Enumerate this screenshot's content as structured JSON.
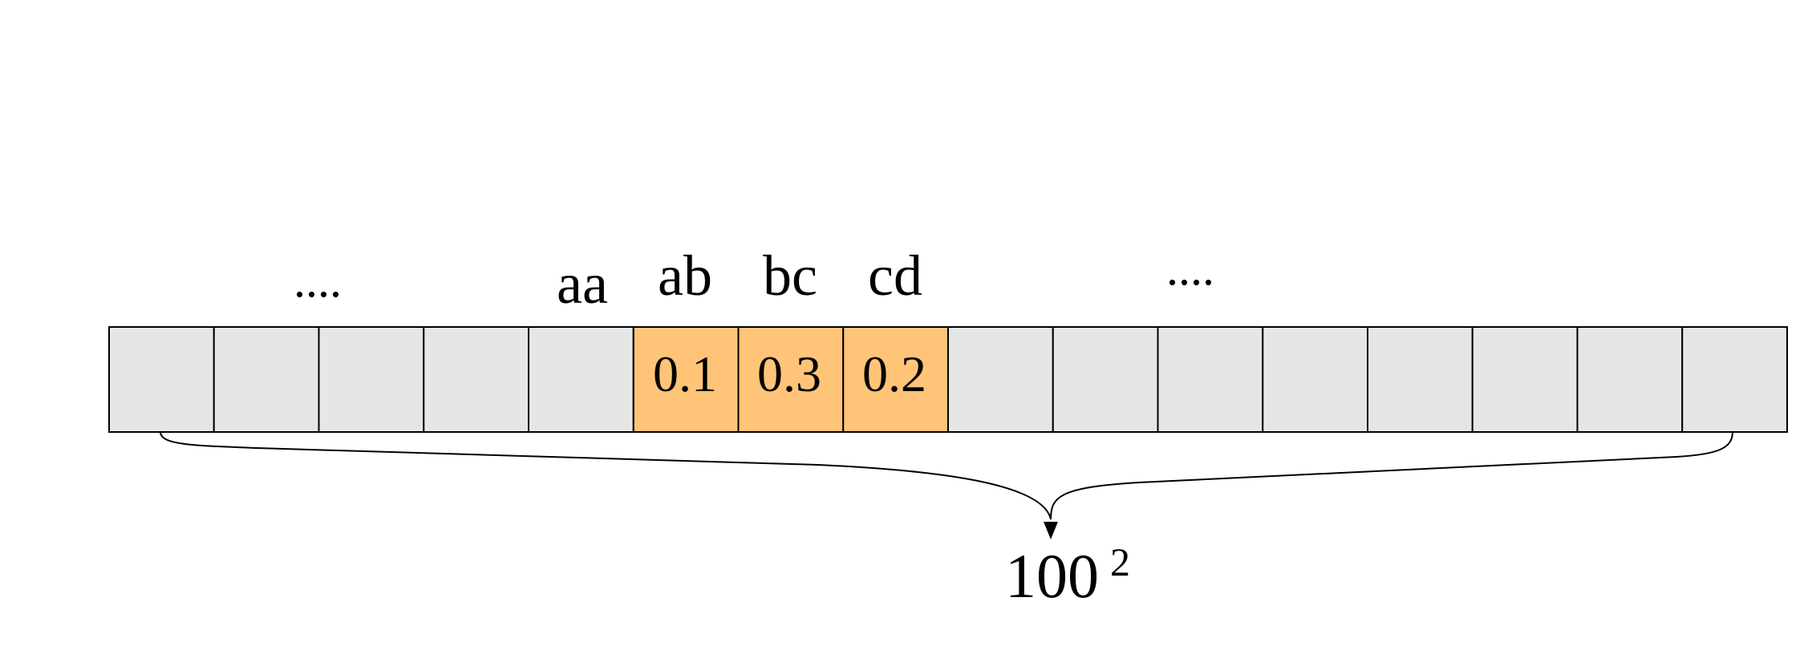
{
  "array": {
    "cell_count": 16,
    "highlight_start": 5,
    "colors": {
      "cell_fill": "#e6e6e6",
      "highlight_fill": "#ffc477",
      "stroke": "#000000"
    },
    "highlighted": [
      {
        "index": 5,
        "label": "ab",
        "value": "0.1"
      },
      {
        "index": 6,
        "label": "bc",
        "value": "0.3"
      },
      {
        "index": 7,
        "label": "cd",
        "value": "0.2"
      }
    ],
    "label_before": {
      "index": 4,
      "label": "aa"
    }
  },
  "ellipsis_left": "....",
  "ellipsis_right": "....",
  "total": {
    "base": "100",
    "exponent": "2"
  }
}
